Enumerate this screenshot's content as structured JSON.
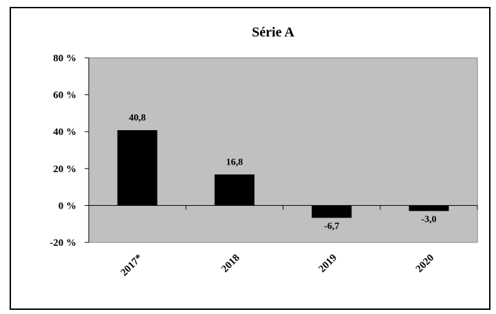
{
  "chart_data": {
    "type": "bar",
    "title": "Série A",
    "xlabel": "",
    "ylabel": "",
    "categories": [
      "2017*",
      "2018",
      "2019",
      "2020"
    ],
    "values": [
      40.8,
      16.8,
      -6.7,
      -3.0
    ],
    "value_labels": [
      "40,8",
      "16,8",
      "-6,7",
      "-3,0"
    ],
    "ylim": [
      -20,
      80
    ],
    "yticks": [
      80,
      60,
      40,
      20,
      0,
      -20
    ],
    "ytick_labels": [
      "80 %",
      "60 %",
      "40 %",
      "20 %",
      "0 %",
      "-20 %"
    ],
    "grid": false,
    "legend": "none",
    "colors": {
      "plot_background": "#c0c0c0",
      "bar": "#000000",
      "axis": "#000000"
    }
  }
}
